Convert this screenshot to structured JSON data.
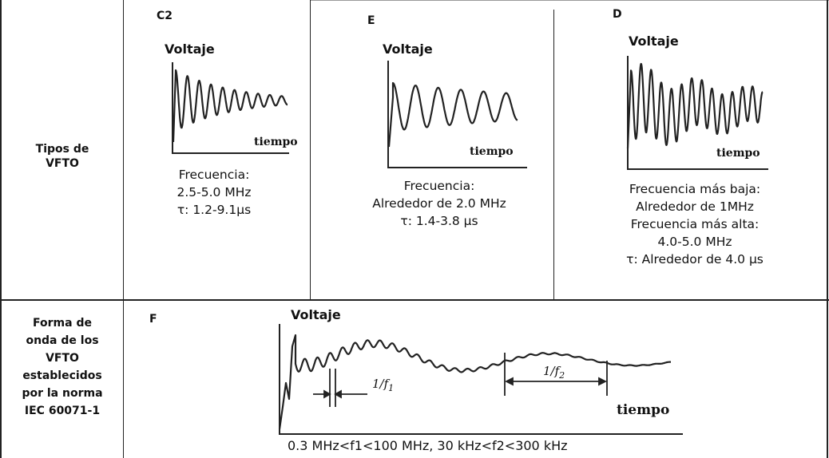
{
  "row1": {
    "label_lines": [
      "Tipos de",
      "VFTO"
    ]
  },
  "row2": {
    "label_lines": [
      "Forma de",
      "onda de los",
      "VFTO",
      "establecidos",
      "por la norma",
      "IEC 60071-1"
    ]
  },
  "panels": [
    {
      "id": "C2",
      "ylabel": "Voltaje",
      "xlabel": "tiempo",
      "desc_lines": [
        "Frecuencia:",
        "2.5-5.0 MHz",
        "τ: 1.2-9.1μs"
      ]
    },
    {
      "id": "E",
      "ylabel": "Voltaje",
      "xlabel": "tiempo",
      "desc_lines": [
        "Frecuencia:",
        "Alrededor de 2.0 MHz",
        "τ: 1.4-3.8 μs"
      ]
    },
    {
      "id": "D",
      "ylabel": "Voltaje",
      "xlabel": "tiempo",
      "desc_lines": [
        "Frecuencia más baja:",
        "Alrededor de 1MHz",
        "Frecuencia más alta:",
        "4.0-5.0 MHz",
        "τ: Alrededor de 4.0 μs"
      ]
    }
  ],
  "bottom": {
    "id": "F",
    "ylabel": "Voltaje",
    "xlabel": "tiempo",
    "f1_label": "1/f",
    "f1_sub": "1",
    "f2_label": "1/f",
    "f2_sub": "2",
    "caption": "0.3 MHz<f1<100 MHz, 30 kHz<f2<300 kHz"
  }
}
